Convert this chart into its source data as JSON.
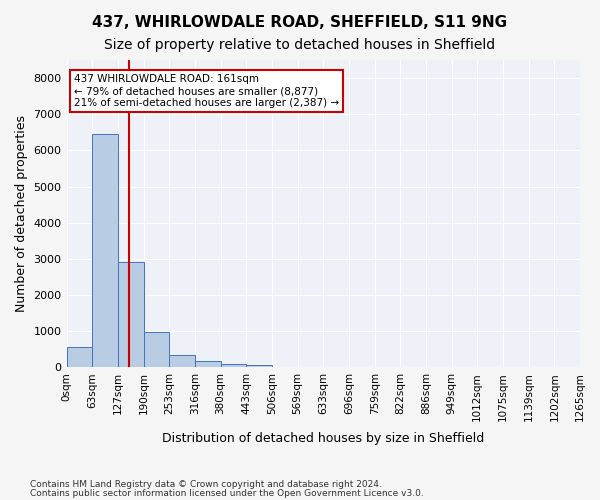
{
  "title1": "437, WHIRLOWDALE ROAD, SHEFFIELD, S11 9NG",
  "title2": "Size of property relative to detached houses in Sheffield",
  "xlabel": "Distribution of detached houses by size in Sheffield",
  "ylabel": "Number of detached properties",
  "footer1": "Contains HM Land Registry data © Crown copyright and database right 2024.",
  "footer2": "Contains public sector information licensed under the Open Government Licence v3.0.",
  "bin_labels": [
    "0sqm",
    "63sqm",
    "127sqm",
    "190sqm",
    "253sqm",
    "316sqm",
    "380sqm",
    "443sqm",
    "506sqm",
    "569sqm",
    "633sqm",
    "696sqm",
    "759sqm",
    "822sqm",
    "886sqm",
    "949sqm",
    "1012sqm",
    "1075sqm",
    "1139sqm",
    "1202sqm",
    "1265sqm"
  ],
  "bar_values": [
    550,
    6450,
    2920,
    970,
    340,
    160,
    100,
    65,
    0,
    0,
    0,
    0,
    0,
    0,
    0,
    0,
    0,
    0,
    0,
    0
  ],
  "bar_color": "#b8cce4",
  "bar_edge_color": "#4472c4",
  "bg_color": "#eef2f8",
  "grid_color": "#ffffff",
  "vline_x": 2.45,
  "vline_color": "#cc0000",
  "annotation_text": "437 WHIRLOWDALE ROAD: 161sqm\n← 79% of detached houses are smaller (8,877)\n21% of semi-detached houses are larger (2,387) →",
  "annotation_box_color": "#cc0000",
  "ylim": [
    0,
    8500
  ],
  "yticks": [
    0,
    1000,
    2000,
    3000,
    4000,
    5000,
    6000,
    7000,
    8000
  ],
  "title1_fontsize": 11,
  "title2_fontsize": 10,
  "axis_fontsize": 9,
  "tick_fontsize": 8
}
